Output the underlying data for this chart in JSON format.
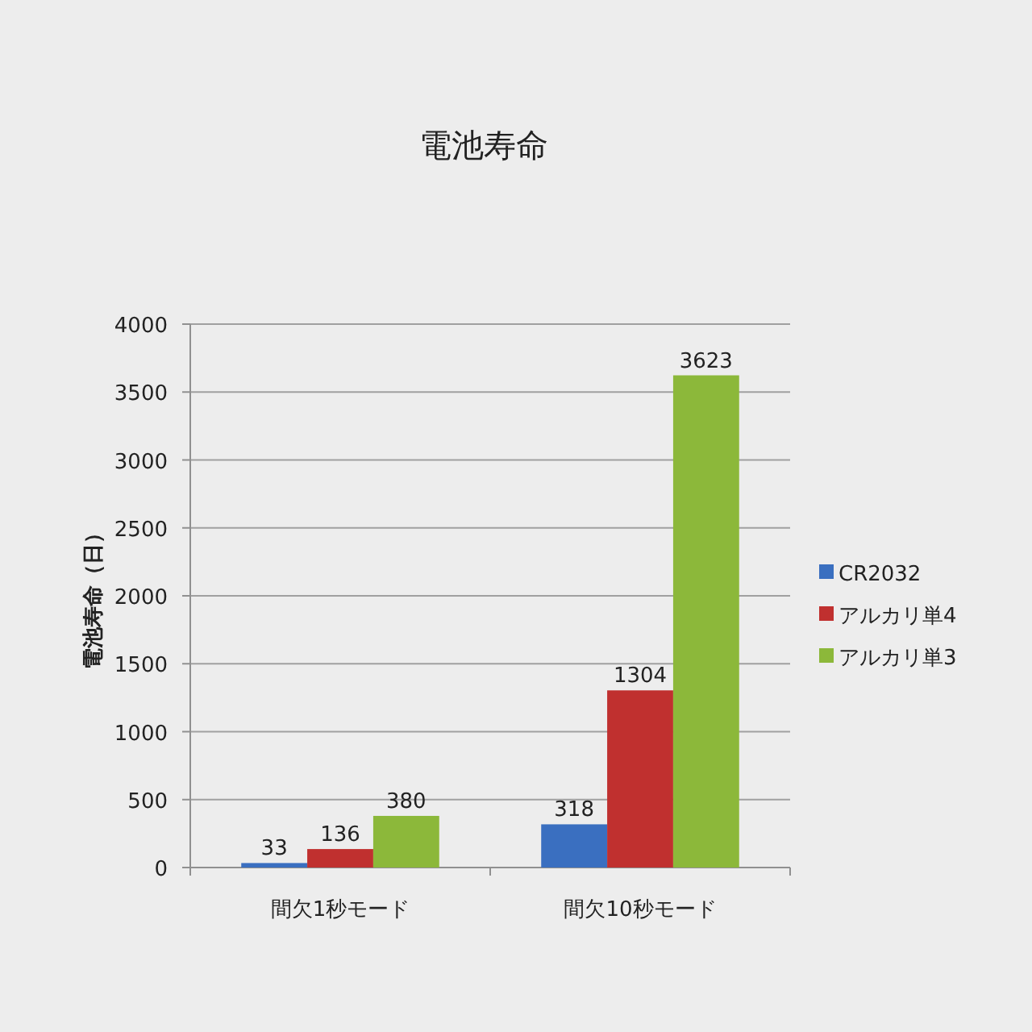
{
  "chart_data": {
    "type": "bar",
    "title": "電池寿命",
    "ylabel": "電池寿命（日）",
    "categories": [
      "間欠1秒モード",
      "間欠10秒モード"
    ],
    "series": [
      {
        "name": "CR2032",
        "color": "#3a6fc0",
        "values": [
          33,
          318
        ]
      },
      {
        "name": "アルカリ単4",
        "color": "#c0302f",
        "values": [
          136,
          1304
        ]
      },
      {
        "name": "アルカリ単3",
        "color": "#8cb83a",
        "values": [
          380,
          3623
        ]
      }
    ],
    "ylim": [
      0,
      4000
    ],
    "yticks": [
      0,
      500,
      1000,
      1500,
      2000,
      2500,
      3000,
      3500,
      4000
    ],
    "grid": "y",
    "legend": "right",
    "data_labels": true
  }
}
